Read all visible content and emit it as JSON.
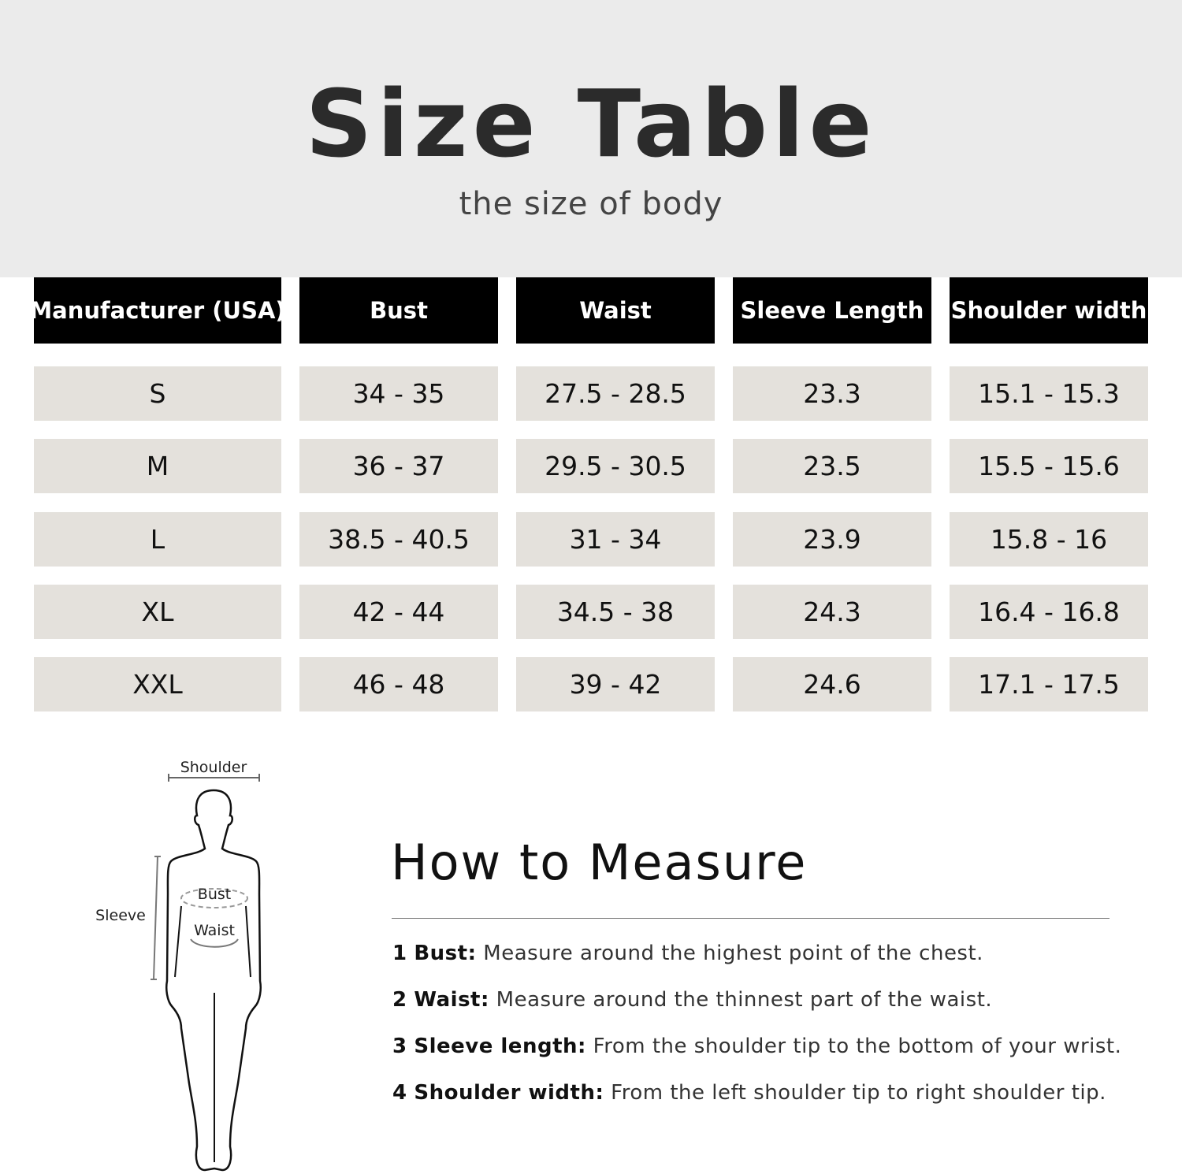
{
  "header": {
    "title": "Size Table",
    "subtitle": "the size of body"
  },
  "table": {
    "columns": [
      "Manufacturer (USA)",
      "Bust",
      "Waist",
      "Sleeve Length",
      "Shoulder width"
    ],
    "rows": [
      [
        "S",
        "34 - 35",
        "27.5 - 28.5",
        "23.3",
        "15.1 - 15.3"
      ],
      [
        "M",
        "36 - 37",
        "29.5 - 30.5",
        "23.5",
        "15.5 - 15.6"
      ],
      [
        "L",
        "38.5 - 40.5",
        "31 - 34",
        "23.9",
        "15.8 - 16"
      ],
      [
        "XL",
        "42 - 44",
        "34.5 - 38",
        "24.3",
        "16.4 - 16.8"
      ],
      [
        "XXL",
        "46 - 48",
        "39 - 42",
        "24.6",
        "17.1 - 17.5"
      ]
    ]
  },
  "figure": {
    "labels": {
      "shoulder": "Shoulder",
      "sleeve": "Sleeve",
      "bust": "Bust",
      "waist": "Waist"
    }
  },
  "measure": {
    "title": "How to Measure",
    "steps": [
      {
        "num": "1",
        "term": "Bust:",
        "text": "Measure around the highest point of the chest."
      },
      {
        "num": "2",
        "term": "Waist:",
        "text": "Measure around the thinnest part of the waist."
      },
      {
        "num": "3",
        "term": "Sleeve length:",
        "text": "From the shoulder tip to the bottom of your wrist."
      },
      {
        "num": "4",
        "term": "Shoulder width:",
        "text": "From the left shoulder tip to right shoulder tip."
      }
    ]
  },
  "colors": {
    "header_bg": "#ebebeb",
    "table_header": "#000000",
    "cell_bg": "#e4e1dc"
  }
}
